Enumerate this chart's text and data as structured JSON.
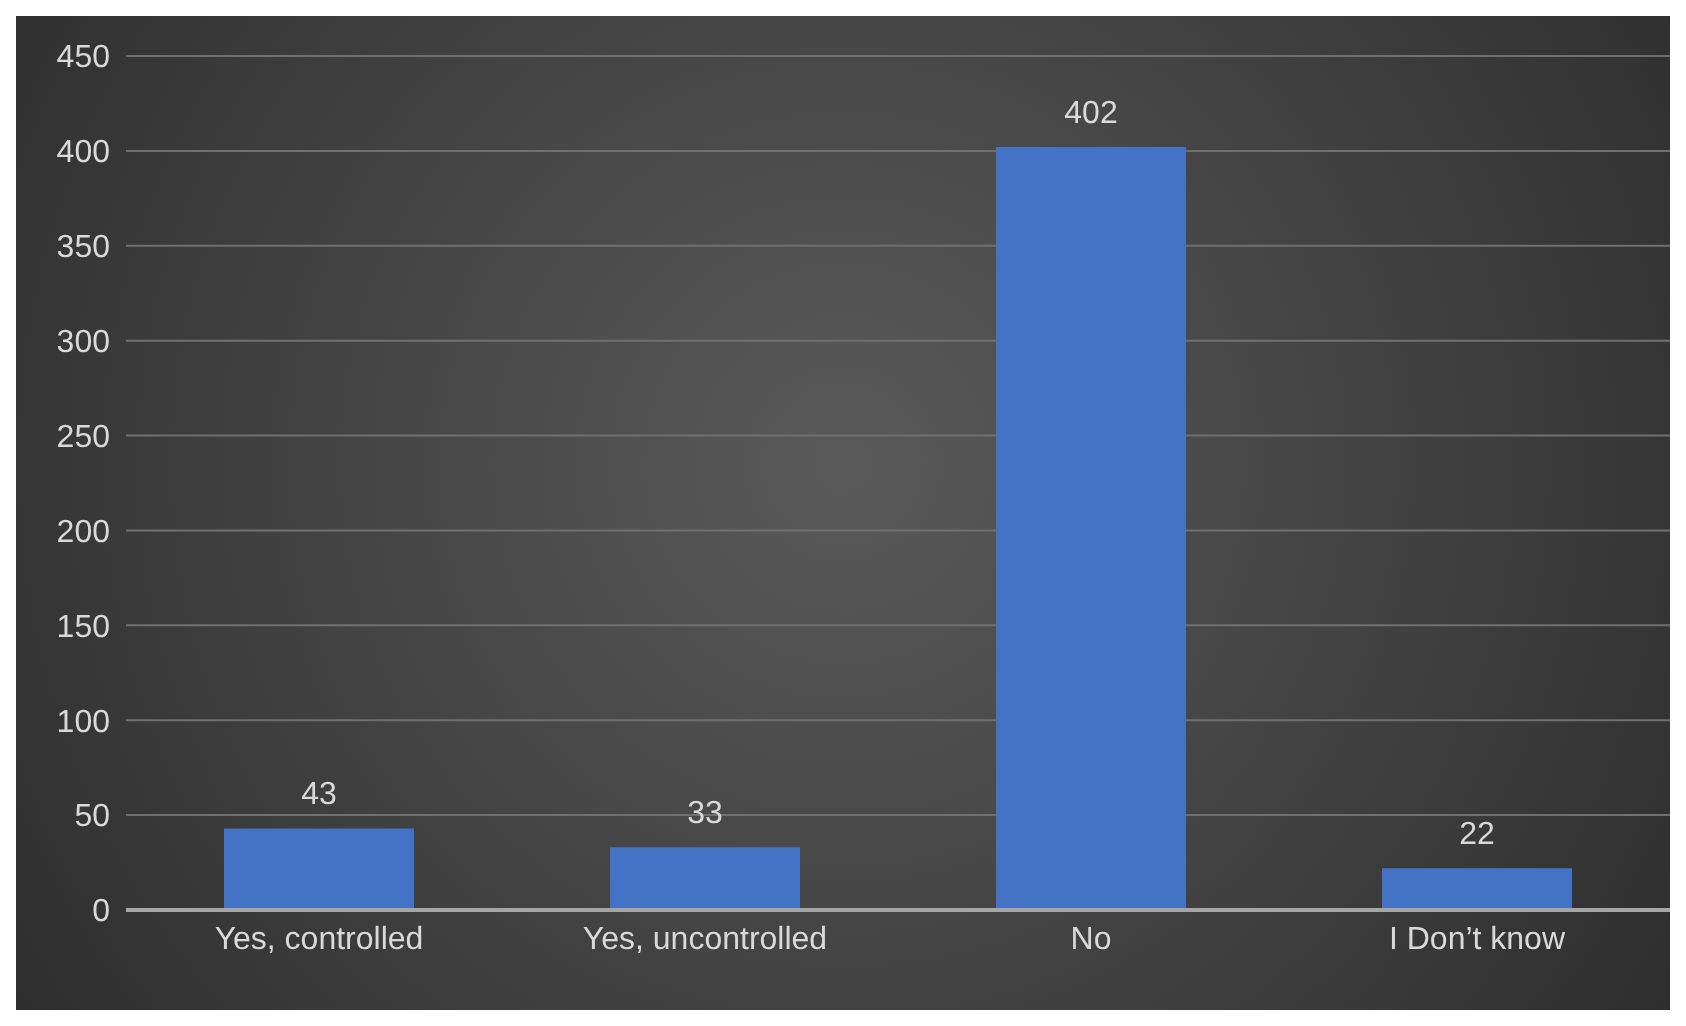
{
  "chart_data": {
    "type": "bar",
    "categories": [
      "Yes, controlled",
      "Yes, uncontrolled",
      "No",
      "I Don’t know"
    ],
    "values": [
      43,
      33,
      402,
      22
    ],
    "color": "#4472c4",
    "ylim": [
      0,
      450
    ],
    "yticks": [
      0,
      50,
      100,
      150,
      200,
      250,
      300,
      350,
      400,
      450
    ],
    "grid": "y",
    "data_labels": true
  }
}
